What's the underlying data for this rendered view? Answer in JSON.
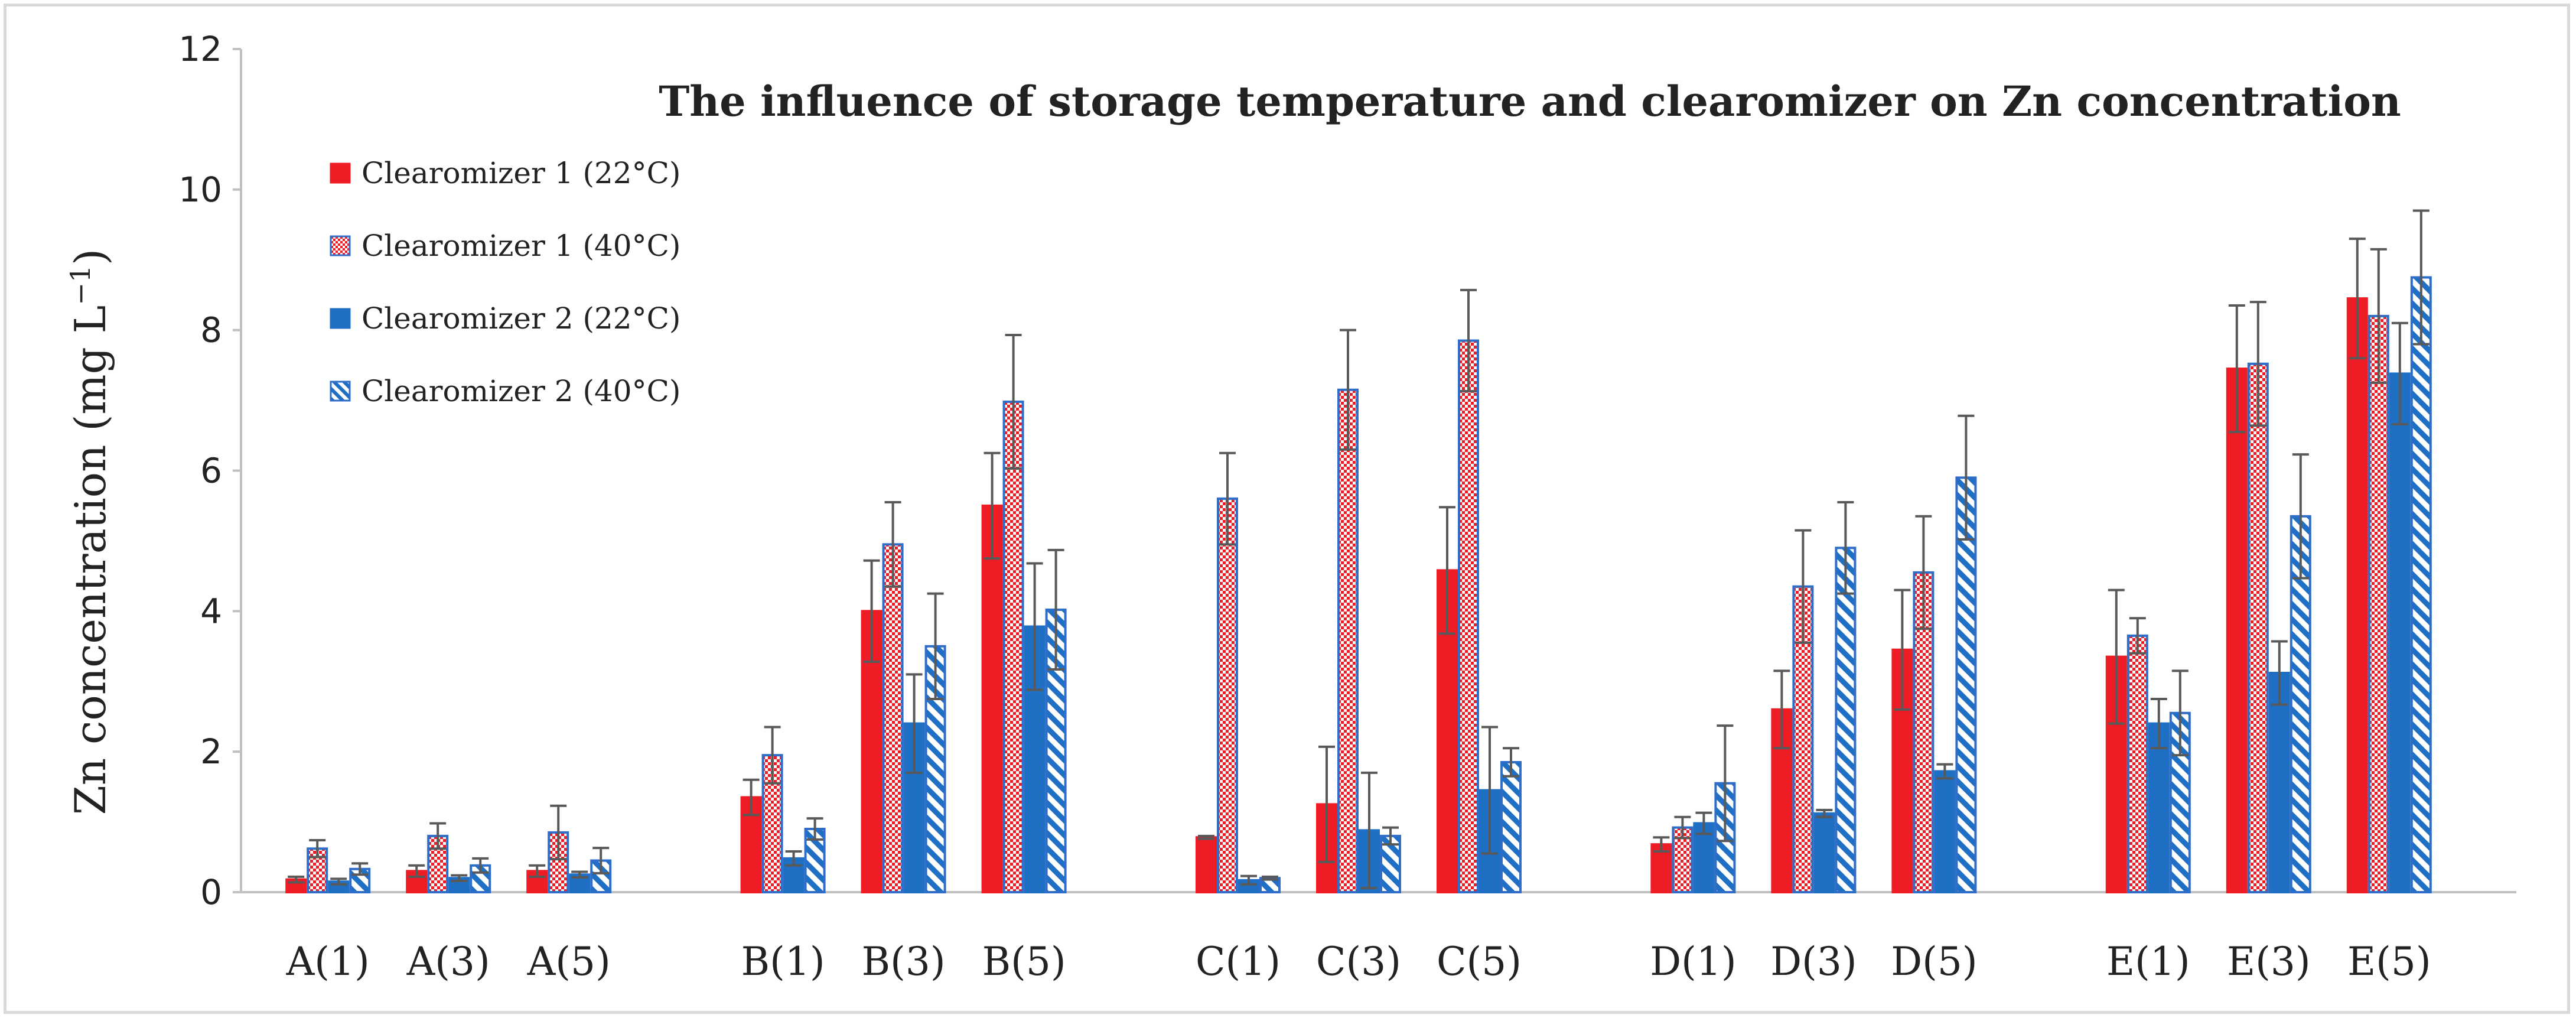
{
  "chart_data": {
    "type": "bar",
    "title": "The influence of storage temperature and clearomizer on Zn concentration",
    "ylabel": "Zn concentration (mg L",
    "ylabel_unit_sup": "−1",
    "ylabel_close": ")",
    "xlabel": "",
    "ylim": [
      0,
      12
    ],
    "yticks": [
      0,
      2,
      4,
      6,
      8,
      10,
      12
    ],
    "grid": false,
    "legend_position": "top-left",
    "groups": [
      [
        "A(1)",
        "A(3)",
        "A(5)"
      ],
      [
        "B(1)",
        "B(3)",
        "B(5)"
      ],
      [
        "C(1)",
        "C(3)",
        "C(5)"
      ],
      [
        "D(1)",
        "D(3)",
        "D(5)"
      ],
      [
        "E(1)",
        "E(3)",
        "E(5)"
      ]
    ],
    "categories": [
      "A(1)",
      "A(3)",
      "A(5)",
      "B(1)",
      "B(3)",
      "B(5)",
      "C(1)",
      "C(3)",
      "C(5)",
      "D(1)",
      "D(3)",
      "D(5)",
      "E(1)",
      "E(3)",
      "E(5)"
    ],
    "series": [
      {
        "name": "Clearomizer 1 (22°C)",
        "pattern": "solid-red",
        "values": [
          0.18,
          0.3,
          0.3,
          1.35,
          4.0,
          5.5,
          0.78,
          1.25,
          4.58,
          0.68,
          2.6,
          3.45,
          3.35,
          7.45,
          8.45
        ],
        "errors": [
          0.04,
          0.08,
          0.08,
          0.25,
          0.72,
          0.75,
          0.02,
          0.82,
          0.9,
          0.1,
          0.55,
          0.85,
          0.95,
          0.9,
          0.85
        ]
      },
      {
        "name": "Clearomizer 1 (40°C)",
        "pattern": "dotted-red",
        "values": [
          0.62,
          0.8,
          0.85,
          1.95,
          4.95,
          6.98,
          5.6,
          7.15,
          7.85,
          0.92,
          4.35,
          4.55,
          3.65,
          7.52,
          8.2
        ],
        "errors": [
          0.12,
          0.18,
          0.38,
          0.4,
          0.6,
          0.95,
          0.65,
          0.85,
          0.72,
          0.15,
          0.8,
          0.8,
          0.25,
          0.88,
          0.95
        ]
      },
      {
        "name": "Clearomizer 2 (22°C)",
        "pattern": "solid-blue",
        "values": [
          0.15,
          0.2,
          0.25,
          0.48,
          2.4,
          3.78,
          0.17,
          0.88,
          1.45,
          0.98,
          1.12,
          1.72,
          2.4,
          3.12,
          7.38
        ],
        "errors": [
          0.04,
          0.04,
          0.04,
          0.1,
          0.7,
          0.9,
          0.06,
          0.82,
          0.9,
          0.15,
          0.05,
          0.1,
          0.35,
          0.45,
          0.72
        ]
      },
      {
        "name": "Clearomizer 2 (40°C)",
        "pattern": "striped-blue",
        "values": [
          0.33,
          0.38,
          0.45,
          0.9,
          3.5,
          4.02,
          0.2,
          0.8,
          1.85,
          1.55,
          4.9,
          5.9,
          2.55,
          5.35,
          8.75
        ],
        "errors": [
          0.08,
          0.1,
          0.18,
          0.15,
          0.75,
          0.85,
          0.02,
          0.12,
          0.2,
          0.82,
          0.65,
          0.88,
          0.6,
          0.88,
          0.95
        ]
      }
    ]
  }
}
